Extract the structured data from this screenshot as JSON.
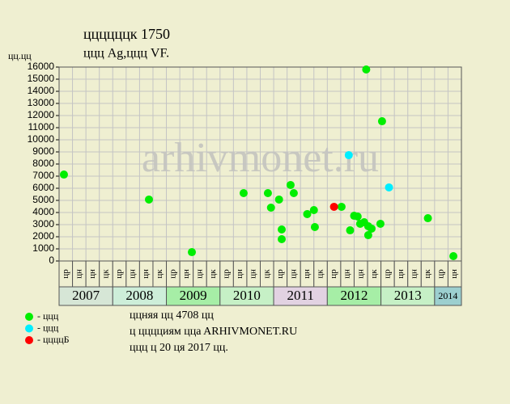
{
  "chart_data": {
    "type": "scatter",
    "title": "ццццццк 1750",
    "subtitle": "ццц Ag,ццц VF.",
    "y_label": "цц.цц",
    "watermark": "arhivmonet.ru",
    "notes": [
      "ццняя цц 4708 цц",
      "ц цццциям ццa ARHIVMONET.RU",
      "ццц ц 20 ця 2017 цц."
    ],
    "xlim": [
      0,
      30
    ],
    "ylim": [
      0,
      16000
    ],
    "yticks": [
      0,
      1000,
      2000,
      3000,
      4000,
      5000,
      6000,
      7000,
      8000,
      9000,
      10000,
      11000,
      12000,
      13000,
      14000,
      15000,
      16000
    ],
    "grid": true,
    "quarter_labels": [
      "цр",
      "цн",
      "цн",
      "цк",
      "цр",
      "цн",
      "цн",
      "цк",
      "цр",
      "цн",
      "цн",
      "цк",
      "цр",
      "цн",
      "цн",
      "цк",
      "цр",
      "цн",
      "цн",
      "цк",
      "цр",
      "цн",
      "цн",
      "цк",
      "цр",
      "цн",
      "цн",
      "цк",
      "цр",
      "цн"
    ],
    "years": [
      {
        "label": "2007",
        "quarters": 4,
        "color": "#d6e6d6"
      },
      {
        "label": "2008",
        "quarters": 4,
        "color": "#cdeed9"
      },
      {
        "label": "2009",
        "quarters": 4,
        "color": "#a6eea6"
      },
      {
        "label": "2010",
        "quarters": 4,
        "color": "#c6f0c6"
      },
      {
        "label": "2011",
        "quarters": 4,
        "color": "#e2d2e2"
      },
      {
        "label": "2012",
        "quarters": 4,
        "color": "#a6eea6"
      },
      {
        "label": "2013",
        "quarters": 4,
        "color": "#c6f0c6"
      },
      {
        "label": "2014",
        "quarters": 2,
        "color": "#9ccfcf"
      }
    ],
    "series": [
      {
        "name": "- ццц",
        "color": "#00ee00",
        "x": [
          0.36,
          6.7,
          9.9,
          13.76,
          15.57,
          15.8,
          16.4,
          16.6,
          16.6,
          17.26,
          17.5,
          18.5,
          19.0,
          19.07,
          21.06,
          21.7,
          22.0,
          22.26,
          22.45,
          22.75,
          22.9,
          23.05,
          23.05,
          23.3,
          23.96,
          24.08,
          27.5,
          29.4
        ],
        "values": [
          7130,
          5070,
          730,
          5600,
          5600,
          4400,
          5070,
          2600,
          1800,
          6270,
          5600,
          3870,
          4200,
          2800,
          4470,
          2530,
          3730,
          3670,
          3070,
          3200,
          15800,
          2130,
          2870,
          2670,
          3070,
          11530,
          3530,
          400
        ]
      },
      {
        "name": "- ццц",
        "color": "#00eeff",
        "x": [
          21.6,
          24.6
        ],
        "values": [
          8730,
          6070
        ]
      },
      {
        "name": "- ццццБ",
        "color": "#ff0000",
        "x": [
          20.5
        ],
        "values": [
          4470
        ]
      }
    ]
  }
}
